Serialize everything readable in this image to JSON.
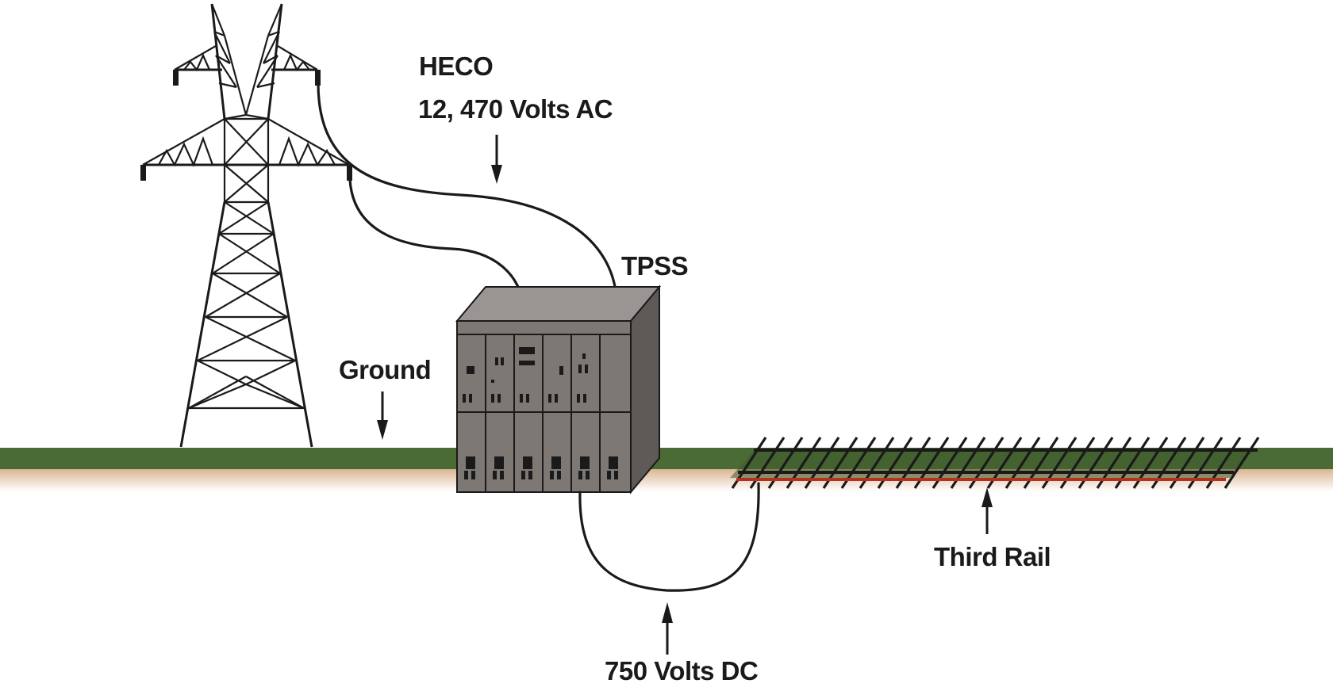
{
  "labels": {
    "source_name": "HECO",
    "source_voltage": "12, 470 Volts AC",
    "substation": "TPSS",
    "ground": "Ground",
    "third_rail": "Third Rail",
    "dc_voltage": "750 Volts DC"
  },
  "colors": {
    "grass": "#4a6b35",
    "soil": "#e7c7a8",
    "cabinet_front": "#7e7875",
    "cabinet_top": "#9a9592",
    "cabinet_side": "#5e5a58",
    "third_rail": "#b5311f",
    "wire": "#1a1a1a"
  },
  "icons": {
    "tower": "transmission-tower-icon",
    "substation": "substation-cabinet-icon",
    "track": "railroad-track-icon"
  }
}
